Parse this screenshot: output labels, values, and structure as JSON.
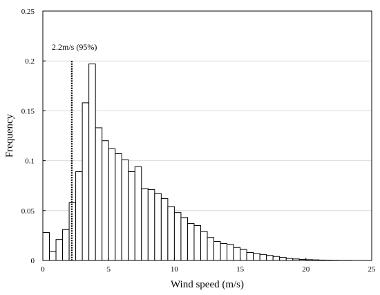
{
  "chart_data": {
    "type": "bar",
    "title": "",
    "xlabel": "Wind speed (m/s)",
    "ylabel": "Frequency",
    "xlim": [
      0,
      25
    ],
    "ylim": [
      0,
      0.25
    ],
    "xticks": [
      0,
      5,
      10,
      15,
      20,
      25
    ],
    "yticks": [
      0,
      0.05,
      0.1,
      0.15,
      0.2,
      0.25
    ],
    "ytick_labels": [
      "0",
      "0.05",
      "0.1",
      "0.15",
      "0.2",
      "0.25"
    ],
    "grid": "horizontal",
    "bin_width": 0.5,
    "bin_starts": [
      0,
      0.5,
      1,
      1.5,
      2,
      2.5,
      3,
      3.5,
      4,
      4.5,
      5,
      5.5,
      6,
      6.5,
      7,
      7.5,
      8,
      8.5,
      9,
      9.5,
      10,
      10.5,
      11,
      11.5,
      12,
      12.5,
      13,
      13.5,
      14,
      14.5,
      15,
      15.5,
      16,
      16.5,
      17,
      17.5,
      18,
      18.5,
      19,
      19.5,
      20,
      20.5,
      21,
      21.5,
      22,
      22.5,
      23,
      23.5,
      24,
      24.5
    ],
    "values": [
      0.028,
      0.009,
      0.021,
      0.031,
      0.058,
      0.089,
      0.158,
      0.197,
      0.133,
      0.12,
      0.112,
      0.107,
      0.101,
      0.089,
      0.094,
      0.072,
      0.071,
      0.067,
      0.062,
      0.054,
      0.048,
      0.043,
      0.037,
      0.035,
      0.029,
      0.023,
      0.019,
      0.017,
      0.016,
      0.013,
      0.011,
      0.008,
      0.007,
      0.006,
      0.005,
      0.004,
      0.003,
      0.002,
      0.0015,
      0.001,
      0.0008,
      0.0006,
      0.0004,
      0.0003,
      0.0002,
      0.0001,
      0.0001,
      0,
      0,
      0
    ],
    "annotation": {
      "label": "2.2m/s (95%)",
      "x": 2.2,
      "y_top": 0.2
    }
  }
}
